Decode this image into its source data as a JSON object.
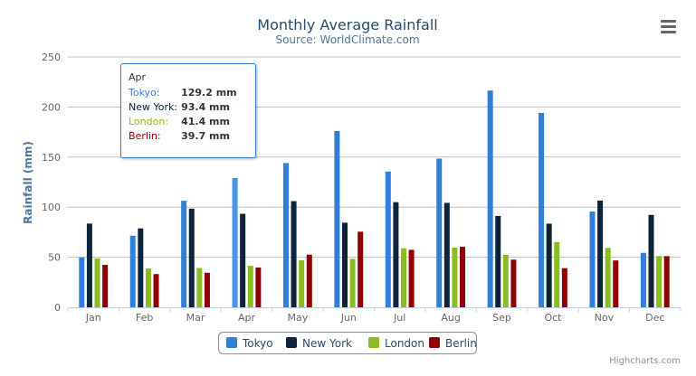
{
  "chart_data": {
    "type": "bar",
    "title": "Monthly Average Rainfall",
    "subtitle": "Source: WorldClimate.com",
    "xlabel": "",
    "ylabel": "Rainfall (mm)",
    "ylim": [
      0,
      250
    ],
    "yticks": [
      "0",
      "50",
      "100",
      "150",
      "200",
      "250"
    ],
    "grid": true,
    "legend_position": "bottom",
    "categories": [
      "Jan",
      "Feb",
      "Mar",
      "Apr",
      "May",
      "Jun",
      "Jul",
      "Aug",
      "Sep",
      "Oct",
      "Nov",
      "Dec"
    ],
    "series": [
      {
        "name": "Tokyo",
        "color": "#2f7ed8",
        "values": [
          49.9,
          71.5,
          106.4,
          129.2,
          144.0,
          176.0,
          135.6,
          148.5,
          216.4,
          194.1,
          95.6,
          54.4
        ]
      },
      {
        "name": "New York",
        "color": "#0d233a",
        "values": [
          83.6,
          78.8,
          98.5,
          93.4,
          106.0,
          84.5,
          105.0,
          104.3,
          91.2,
          83.5,
          106.6,
          92.3
        ]
      },
      {
        "name": "London",
        "color": "#8bbc21",
        "values": [
          48.9,
          38.8,
          39.3,
          41.4,
          47.0,
          48.3,
          59.0,
          59.6,
          52.4,
          65.2,
          59.3,
          51.2
        ]
      },
      {
        "name": "Berlin",
        "color": "#910000",
        "values": [
          42.4,
          33.2,
          34.5,
          39.7,
          52.6,
          75.5,
          57.4,
          60.4,
          47.6,
          39.1,
          46.8,
          51.1
        ]
      }
    ],
    "tooltip": {
      "header": "Apr",
      "rows": [
        {
          "label": "Tokyo:",
          "value": "129.2 mm",
          "color": "#2f7ed8"
        },
        {
          "label": "New York:",
          "value": "93.4 mm",
          "color": "#0d233a"
        },
        {
          "label": "London:",
          "value": "41.4 mm",
          "color": "#8bbc21"
        },
        {
          "label": "Berlin:",
          "value": "39.7 mm",
          "color": "#910000"
        }
      ]
    },
    "credits": "Highcharts.com"
  }
}
